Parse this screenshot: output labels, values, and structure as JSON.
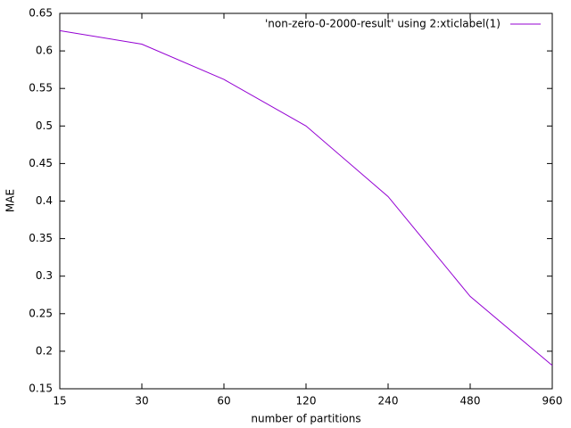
{
  "chart_data": {
    "type": "line",
    "x_label": "number of partitions",
    "y_label": "MAE",
    "categories": [
      "15",
      "30",
      "60",
      "120",
      "240",
      "480",
      "960"
    ],
    "series": [
      {
        "name": "'non-zero-0-2000-result' using 2:xticlabel(1)",
        "color": "#9400d3",
        "values": [
          0.627,
          0.609,
          0.562,
          0.5,
          0.406,
          0.273,
          0.181
        ]
      }
    ],
    "ylim": [
      0.15,
      0.65
    ],
    "yticks": [
      0.15,
      0.2,
      0.25,
      0.3,
      0.35,
      0.4,
      0.45,
      0.5,
      0.55,
      0.6,
      0.65
    ],
    "grid": false,
    "legend": "top-right"
  }
}
